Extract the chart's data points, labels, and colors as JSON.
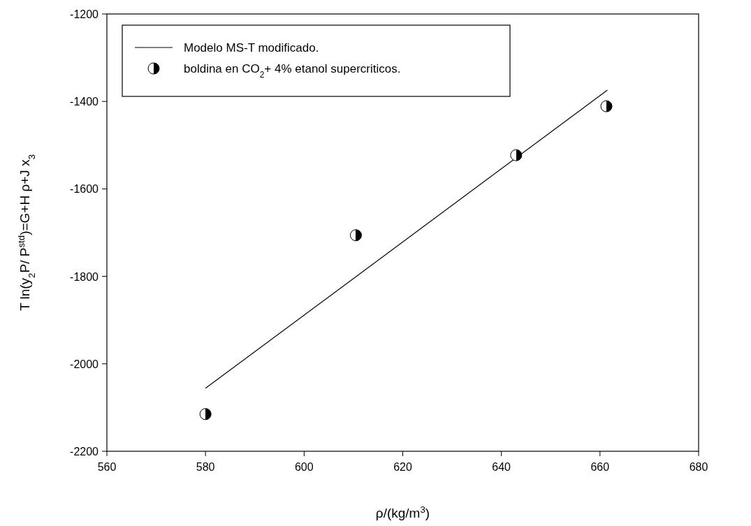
{
  "chart_data": {
    "type": "scatter",
    "xlabel": "ρ/(kg/m$^{3}$)",
    "ylabel": "T ln(y$_{2}$P/ P$^{std}$)=G+H ρ+J x$_{3}$",
    "xlim": [
      560,
      680
    ],
    "xticks": [
      560,
      580,
      600,
      620,
      640,
      660,
      680
    ],
    "ylim": [
      -2200,
      -1200
    ],
    "yticks": [
      -2200,
      -2000,
      -1800,
      -1600,
      -1400,
      -1200
    ],
    "grid": false,
    "legend": "top left",
    "marker": "circle",
    "series": [
      {
        "type": "line",
        "name": "Modelo MS-T modificado.",
        "color": "#000000",
        "x": [
          580,
          661.5
        ],
        "values": [
          -2056,
          -1374
        ],
        "line_style": "solid",
        "marker": "none"
      },
      {
        "name": "boldina en CO$_{2}$+ 4% etanol supercriticos.",
        "color": "#000000",
        "x": [
          580,
          610.5,
          643,
          661.3
        ],
        "values": [
          -2115,
          -1706,
          -1523,
          -1411
        ]
      }
    ]
  }
}
